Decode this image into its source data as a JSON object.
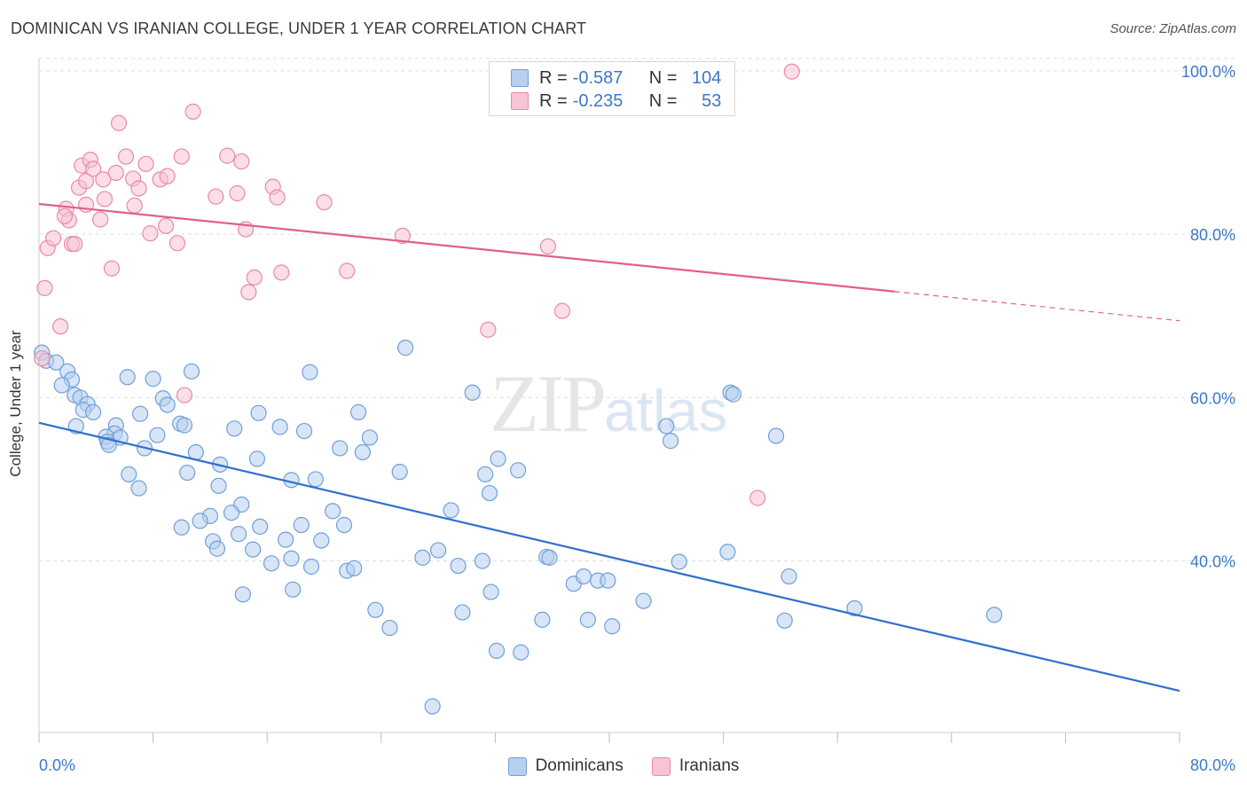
{
  "header": {
    "title": "DOMINICAN VS IRANIAN COLLEGE, UNDER 1 YEAR CORRELATION CHART",
    "source": "Source: ZipAtlas.com"
  },
  "watermark": {
    "zip": "ZIP",
    "atlas": "atlas"
  },
  "legend_top": {
    "r_label": "R =",
    "n_label": "N =",
    "rows": [
      {
        "r": "-0.587",
        "n": "104"
      },
      {
        "r": "-0.235",
        "n": "53"
      }
    ]
  },
  "legend_bottom": [
    "Dominicans",
    "Iranians"
  ],
  "colors": {
    "blue_fill": "#b7d0f0",
    "blue_stroke": "#6f9fd8",
    "blue_line": "#2f6fcf",
    "pink_fill": "#f8c3d3",
    "pink_stroke": "#e98aa8",
    "pink_line": "#e0608a",
    "axis_text": "#3a78c9",
    "grid": "#dddddd"
  },
  "chart_data": {
    "type": "scatter",
    "title": "DOMINICAN VS IRANIAN COLLEGE, UNDER 1 YEAR CORRELATION CHART",
    "xlabel": "",
    "ylabel": "College, Under 1 year",
    "xlim": [
      0,
      80
    ],
    "ylim": [
      19,
      101.5
    ],
    "x_tick_labels": [
      "0.0%",
      "80.0%"
    ],
    "y_ticks": [
      40,
      60,
      80,
      100
    ],
    "y_tick_labels": [
      "40.0%",
      "60.0%",
      "80.0%",
      "100.0%"
    ],
    "grid": true,
    "legend_position": "top-center",
    "series": [
      {
        "name": "Dominicans",
        "r": -0.587,
        "n": 104,
        "trend": {
          "x": [
            0,
            80
          ],
          "y": [
            56.9,
            24.1
          ]
        },
        "points": [
          [
            0.2,
            65.5
          ],
          [
            0.5,
            64.5
          ],
          [
            1.2,
            64.3
          ],
          [
            2.0,
            63.2
          ],
          [
            2.3,
            62.2
          ],
          [
            1.6,
            61.5
          ],
          [
            2.5,
            60.3
          ],
          [
            2.9,
            60.0
          ],
          [
            3.4,
            59.2
          ],
          [
            3.1,
            58.5
          ],
          [
            3.8,
            58.2
          ],
          [
            2.6,
            56.5
          ],
          [
            5.4,
            56.6
          ],
          [
            5.3,
            55.6
          ],
          [
            4.7,
            55.2
          ],
          [
            5.7,
            55.1
          ],
          [
            4.8,
            54.6
          ],
          [
            4.9,
            54.2
          ],
          [
            6.2,
            62.5
          ],
          [
            7.1,
            58.0
          ],
          [
            8.0,
            62.3
          ],
          [
            8.7,
            59.9
          ],
          [
            9.0,
            59.1
          ],
          [
            8.3,
            55.4
          ],
          [
            7.4,
            53.8
          ],
          [
            6.3,
            50.6
          ],
          [
            7.0,
            48.9
          ],
          [
            9.9,
            56.8
          ],
          [
            10.2,
            56.6
          ],
          [
            10.7,
            63.2
          ],
          [
            11.0,
            53.3
          ],
          [
            10.4,
            50.8
          ],
          [
            12.7,
            51.8
          ],
          [
            13.7,
            56.2
          ],
          [
            12.6,
            49.2
          ],
          [
            15.4,
            58.1
          ],
          [
            16.9,
            56.4
          ],
          [
            15.3,
            52.5
          ],
          [
            17.7,
            49.9
          ],
          [
            18.6,
            55.9
          ],
          [
            19.4,
            50.0
          ],
          [
            19.0,
            63.1
          ],
          [
            21.1,
            53.8
          ],
          [
            22.4,
            58.2
          ],
          [
            22.7,
            53.3
          ],
          [
            23.2,
            55.1
          ],
          [
            25.3,
            50.9
          ],
          [
            25.7,
            66.1
          ],
          [
            14.2,
            46.9
          ],
          [
            12.0,
            45.5
          ],
          [
            11.3,
            44.9
          ],
          [
            13.5,
            45.9
          ],
          [
            15.5,
            44.2
          ],
          [
            10.0,
            44.1
          ],
          [
            14.0,
            43.3
          ],
          [
            12.2,
            42.4
          ],
          [
            12.5,
            41.5
          ],
          [
            15.0,
            41.4
          ],
          [
            17.3,
            42.6
          ],
          [
            18.4,
            44.4
          ],
          [
            19.8,
            42.5
          ],
          [
            20.6,
            46.1
          ],
          [
            21.4,
            44.4
          ],
          [
            16.3,
            39.7
          ],
          [
            17.7,
            40.3
          ],
          [
            19.1,
            39.3
          ],
          [
            21.6,
            38.8
          ],
          [
            22.1,
            39.1
          ],
          [
            14.3,
            35.9
          ],
          [
            17.8,
            36.5
          ],
          [
            23.6,
            34.0
          ],
          [
            24.6,
            31.8
          ],
          [
            26.9,
            40.4
          ],
          [
            28.0,
            41.3
          ],
          [
            28.9,
            46.2
          ],
          [
            29.4,
            39.4
          ],
          [
            29.7,
            33.7
          ],
          [
            31.3,
            50.6
          ],
          [
            31.6,
            48.3
          ],
          [
            31.1,
            40.0
          ],
          [
            31.7,
            36.2
          ],
          [
            32.2,
            52.5
          ],
          [
            33.6,
            51.1
          ],
          [
            32.1,
            29.0
          ],
          [
            33.8,
            28.8
          ],
          [
            35.6,
            40.5
          ],
          [
            35.8,
            40.4
          ],
          [
            35.3,
            32.8
          ],
          [
            37.5,
            37.2
          ],
          [
            38.2,
            38.1
          ],
          [
            39.2,
            37.6
          ],
          [
            39.9,
            37.6
          ],
          [
            38.5,
            32.8
          ],
          [
            40.2,
            32.0
          ],
          [
            42.4,
            35.1
          ],
          [
            44.0,
            56.5
          ],
          [
            44.3,
            54.7
          ],
          [
            48.5,
            60.6
          ],
          [
            48.7,
            60.4
          ],
          [
            44.9,
            39.9
          ],
          [
            48.3,
            41.1
          ],
          [
            51.7,
            55.3
          ],
          [
            52.6,
            38.1
          ],
          [
            52.3,
            32.7
          ],
          [
            57.2,
            34.2
          ],
          [
            67.0,
            33.4
          ],
          [
            30.4,
            60.6
          ],
          [
            27.6,
            22.2
          ]
        ]
      },
      {
        "name": "Iranians",
        "r": -0.235,
        "n": 53,
        "trend": {
          "x": [
            0,
            80
          ],
          "y": [
            83.7,
            69.4
          ],
          "solid_until": 60
        },
        "points": [
          [
            0.2,
            64.8
          ],
          [
            0.4,
            73.4
          ],
          [
            0.6,
            78.3
          ],
          [
            1.0,
            79.5
          ],
          [
            1.5,
            68.7
          ],
          [
            1.9,
            83.1
          ],
          [
            2.1,
            81.7
          ],
          [
            2.3,
            78.8
          ],
          [
            2.5,
            78.8
          ],
          [
            1.8,
            82.2
          ],
          [
            2.8,
            85.7
          ],
          [
            3.0,
            88.4
          ],
          [
            3.3,
            86.5
          ],
          [
            3.3,
            83.6
          ],
          [
            3.6,
            89.1
          ],
          [
            3.8,
            88.0
          ],
          [
            4.3,
            81.8
          ],
          [
            4.5,
            86.7
          ],
          [
            4.6,
            84.3
          ],
          [
            5.1,
            75.8
          ],
          [
            5.4,
            87.5
          ],
          [
            5.6,
            93.6
          ],
          [
            6.1,
            89.5
          ],
          [
            6.6,
            86.8
          ],
          [
            6.7,
            83.5
          ],
          [
            7.0,
            85.6
          ],
          [
            7.5,
            88.6
          ],
          [
            7.8,
            80.1
          ],
          [
            8.5,
            86.7
          ],
          [
            8.9,
            81.0
          ],
          [
            9.0,
            87.1
          ],
          [
            9.7,
            78.9
          ],
          [
            10.0,
            89.5
          ],
          [
            10.2,
            60.3
          ],
          [
            10.8,
            95.0
          ],
          [
            12.4,
            84.6
          ],
          [
            13.2,
            89.6
          ],
          [
            13.9,
            85.0
          ],
          [
            14.2,
            88.9
          ],
          [
            14.5,
            80.6
          ],
          [
            14.7,
            72.9
          ],
          [
            15.1,
            74.7
          ],
          [
            16.4,
            85.8
          ],
          [
            16.7,
            84.5
          ],
          [
            17.0,
            75.3
          ],
          [
            20.0,
            83.9
          ],
          [
            21.6,
            75.5
          ],
          [
            25.5,
            79.8
          ],
          [
            31.5,
            68.3
          ],
          [
            35.7,
            78.5
          ],
          [
            36.7,
            70.6
          ],
          [
            50.4,
            47.7
          ],
          [
            52.8,
            99.9
          ]
        ]
      }
    ]
  }
}
